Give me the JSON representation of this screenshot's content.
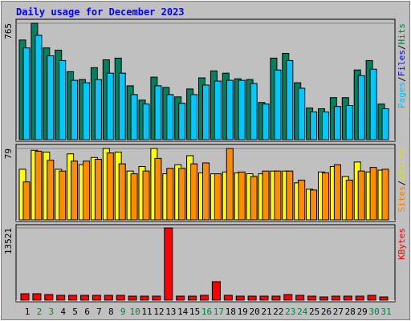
{
  "chart_data": [
    {
      "type": "bar",
      "title": "Daily usage for December 2023",
      "legend_labels": [
        {
          "text": "Pages",
          "color": "#00c0ff"
        },
        {
          "text": "Files",
          "color": "#0000ff"
        },
        {
          "text": "Hits",
          "color": "#008040"
        }
      ],
      "series": [
        {
          "name": "Hits",
          "color": "#00805c",
          "values": [
            655,
            765,
            603,
            588,
            447,
            395,
            473,
            525,
            536,
            354,
            260,
            411,
            343,
            281,
            333,
            406,
            452,
            437,
            400,
            395,
            244,
            536,
            567,
            374,
            208,
            203,
            276,
            276,
            458,
            520,
            234
          ]
        },
        {
          "name": "Files",
          "color": "#00c8ff",
          "values": [
            603,
            686,
            551,
            520,
            390,
            374,
            395,
            437,
            437,
            296,
            234,
            354,
            296,
            239,
            296,
            359,
            385,
            390,
            390,
            369,
            234,
            458,
            520,
            338,
            182,
            182,
            218,
            224,
            421,
            463,
            203
          ]
        }
      ],
      "ylim": [
        0,
        765
      ],
      "yticks": [
        765
      ],
      "grid": true
    },
    {
      "type": "bar",
      "legend_labels": [
        {
          "text": "Sites",
          "color": "#ff8000"
        },
        {
          "text": "Visits",
          "color": "#e0e000"
        }
      ],
      "series": [
        {
          "name": "Visits",
          "color": "#ffff00",
          "values": [
            56,
            77,
            75,
            56,
            73,
            61,
            69,
            79,
            75,
            54,
            59,
            79,
            51,
            61,
            71,
            52,
            51,
            53,
            52,
            51,
            51,
            54,
            54,
            41,
            34,
            53,
            59,
            48,
            64,
            53,
            55
          ]
        },
        {
          "name": "Sites",
          "color": "#ff8c00",
          "values": [
            42,
            76,
            66,
            54,
            65,
            65,
            67,
            74,
            62,
            51,
            54,
            68,
            57,
            57,
            62,
            63,
            51,
            79,
            53,
            48,
            54,
            54,
            54,
            44,
            33,
            52,
            61,
            44,
            54,
            58,
            56
          ]
        }
      ],
      "ylim": [
        0,
        79
      ],
      "yticks": [
        79
      ],
      "grid": true
    },
    {
      "type": "bar",
      "legend_labels": [
        {
          "text": "KBytes",
          "color": "#ff0000"
        }
      ],
      "series": [
        {
          "name": "KBytes",
          "color": "#ff0000",
          "values": [
            1200,
            1200,
            1050,
            900,
            900,
            900,
            900,
            900,
            900,
            750,
            750,
            750,
            13521,
            750,
            750,
            900,
            3455,
            900,
            750,
            750,
            750,
            750,
            1050,
            900,
            750,
            600,
            750,
            750,
            750,
            900,
            600
          ]
        }
      ],
      "ylim": [
        0,
        13521
      ],
      "yticks": [
        13521
      ],
      "grid": true,
      "categories": [
        "1",
        "2",
        "3",
        "4",
        "5",
        "6",
        "7",
        "8",
        "9",
        "10",
        "11",
        "12",
        "13",
        "14",
        "15",
        "16",
        "17",
        "18",
        "19",
        "20",
        "21",
        "22",
        "23",
        "24",
        "25",
        "26",
        "27",
        "28",
        "29",
        "30",
        "31"
      ],
      "category_colors": [
        "#000000",
        "#008040",
        "#008040",
        "#000000",
        "#000000",
        "#000000",
        "#000000",
        "#000000",
        "#008040",
        "#008040",
        "#000000",
        "#000000",
        "#000000",
        "#000000",
        "#000000",
        "#008040",
        "#008040",
        "#000000",
        "#000000",
        "#000000",
        "#000000",
        "#000000",
        "#008040",
        "#008040",
        "#000000",
        "#000000",
        "#000000",
        "#000000",
        "#000000",
        "#008040",
        "#008040"
      ]
    }
  ]
}
